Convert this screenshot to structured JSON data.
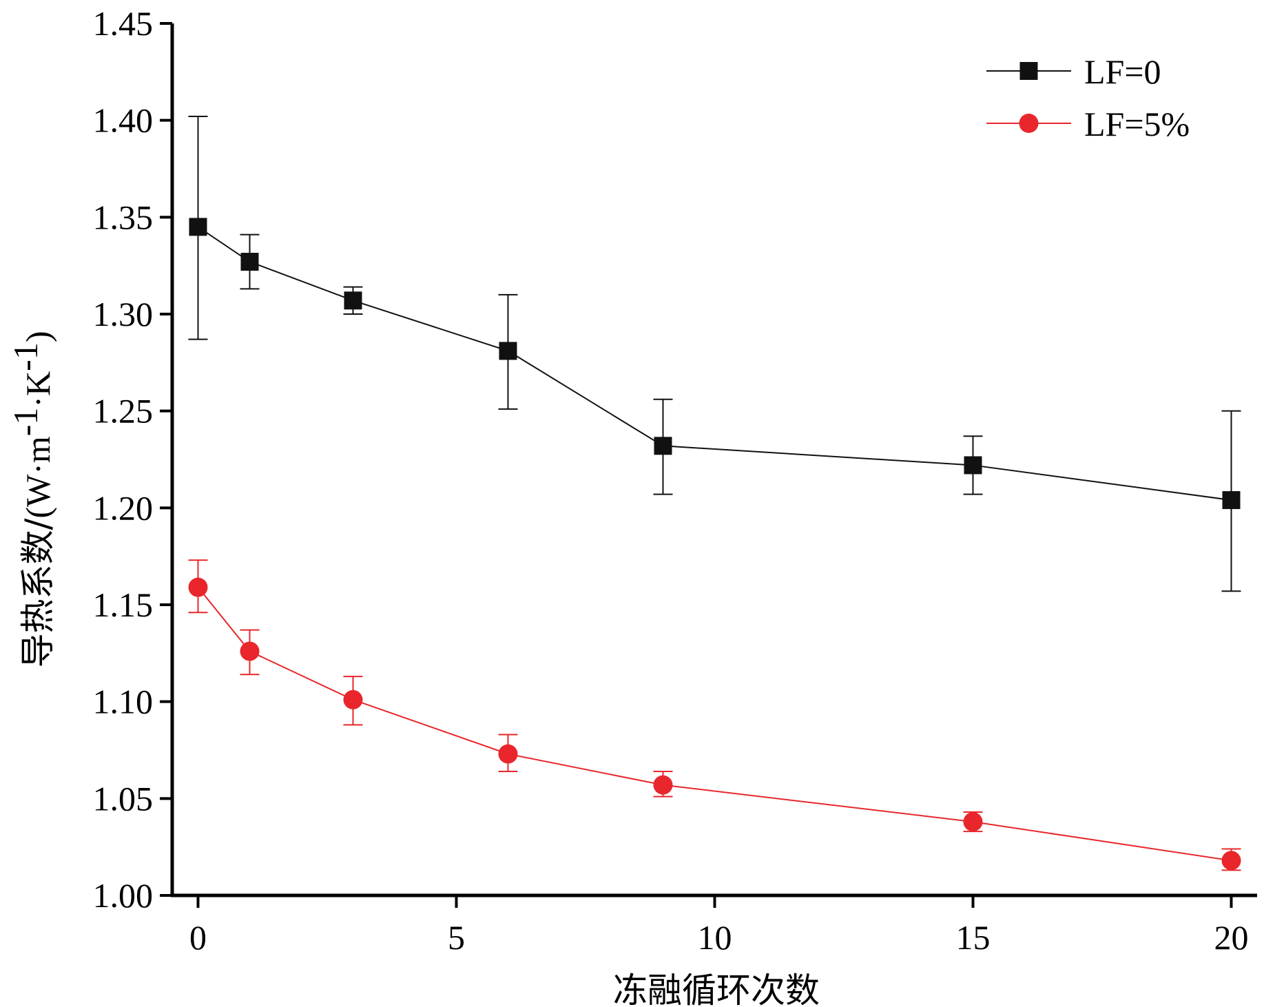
{
  "chart_data": {
    "type": "line",
    "title": "",
    "xlabel": "冻融循环次数",
    "ylabel": {
      "prefix": "导热系数/",
      "unit_open": "(W·m",
      "exp1": "-1",
      "unit_mid": "·K",
      "exp2": "-1",
      "unit_close": ")"
    },
    "xlim": [
      -0.5,
      20.5
    ],
    "ylim": [
      1.0,
      1.45
    ],
    "x_ticks": [
      0,
      5,
      10,
      15,
      20
    ],
    "x_tick_labels": [
      "0",
      "5",
      "10",
      "15",
      "20"
    ],
    "y_ticks": [
      1.0,
      1.05,
      1.1,
      1.15,
      1.2,
      1.25,
      1.3,
      1.35,
      1.4,
      1.45
    ],
    "y_tick_labels": [
      "1.00",
      "1.05",
      "1.10",
      "1.15",
      "1.20",
      "1.25",
      "1.30",
      "1.35",
      "1.40",
      "1.45"
    ],
    "legend_position": "top-right",
    "grid": false,
    "series": [
      {
        "name": "LF=0",
        "color": "#111111",
        "marker": "square",
        "x": [
          0,
          1,
          3,
          6,
          9,
          15,
          20
        ],
        "values": [
          1.345,
          1.327,
          1.307,
          1.281,
          1.232,
          1.222,
          1.204
        ],
        "error_low": [
          1.287,
          1.313,
          1.3,
          1.251,
          1.207,
          1.207,
          1.157
        ],
        "error_high": [
          1.402,
          1.341,
          1.314,
          1.31,
          1.256,
          1.237,
          1.25
        ]
      },
      {
        "name": "LF=5%",
        "color": "#e8262b",
        "marker": "circle",
        "x": [
          0,
          1,
          3,
          6,
          9,
          15,
          20
        ],
        "values": [
          1.159,
          1.126,
          1.101,
          1.073,
          1.057,
          1.038,
          1.018
        ],
        "error_low": [
          1.146,
          1.114,
          1.088,
          1.064,
          1.051,
          1.033,
          1.013
        ],
        "error_high": [
          1.173,
          1.137,
          1.113,
          1.083,
          1.064,
          1.043,
          1.024
        ]
      }
    ]
  }
}
